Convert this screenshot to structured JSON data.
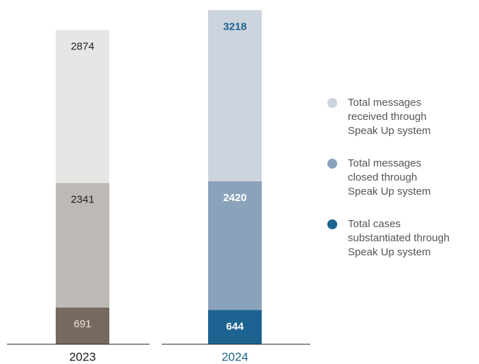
{
  "chart_data": {
    "type": "stacked-bar",
    "categories": [
      "2023",
      "2024"
    ],
    "category_colors": [
      "#1a1a1a",
      "#1d6391"
    ],
    "series": [
      {
        "name": "Total cases\nsubstantiated through\nSpeak Up system",
        "color": "#1d6391",
        "colors": [
          "#77695f",
          "#1d6391"
        ],
        "label_colors": [
          "#e8e4df",
          "#ffffff"
        ],
        "values": [
          691,
          644
        ]
      },
      {
        "name": "Total messages\nclosed through\nSpeak Up system",
        "color": "#8aa3bb",
        "colors": [
          "#bdbab5",
          "#8aa3bb"
        ],
        "label_colors": [
          "#222222",
          "#ffffff"
        ],
        "values": [
          2341,
          2420
        ]
      },
      {
        "name": "Total messages\nreceived through\nSpeak Up system",
        "color": "#ccd4de",
        "colors": [
          "#e5e7e5",
          "#ccd4de"
        ],
        "label_colors": [
          "#222222",
          "#1d6391"
        ],
        "values": [
          2874,
          3218
        ]
      }
    ],
    "ylim": [
      0,
      6300
    ]
  }
}
